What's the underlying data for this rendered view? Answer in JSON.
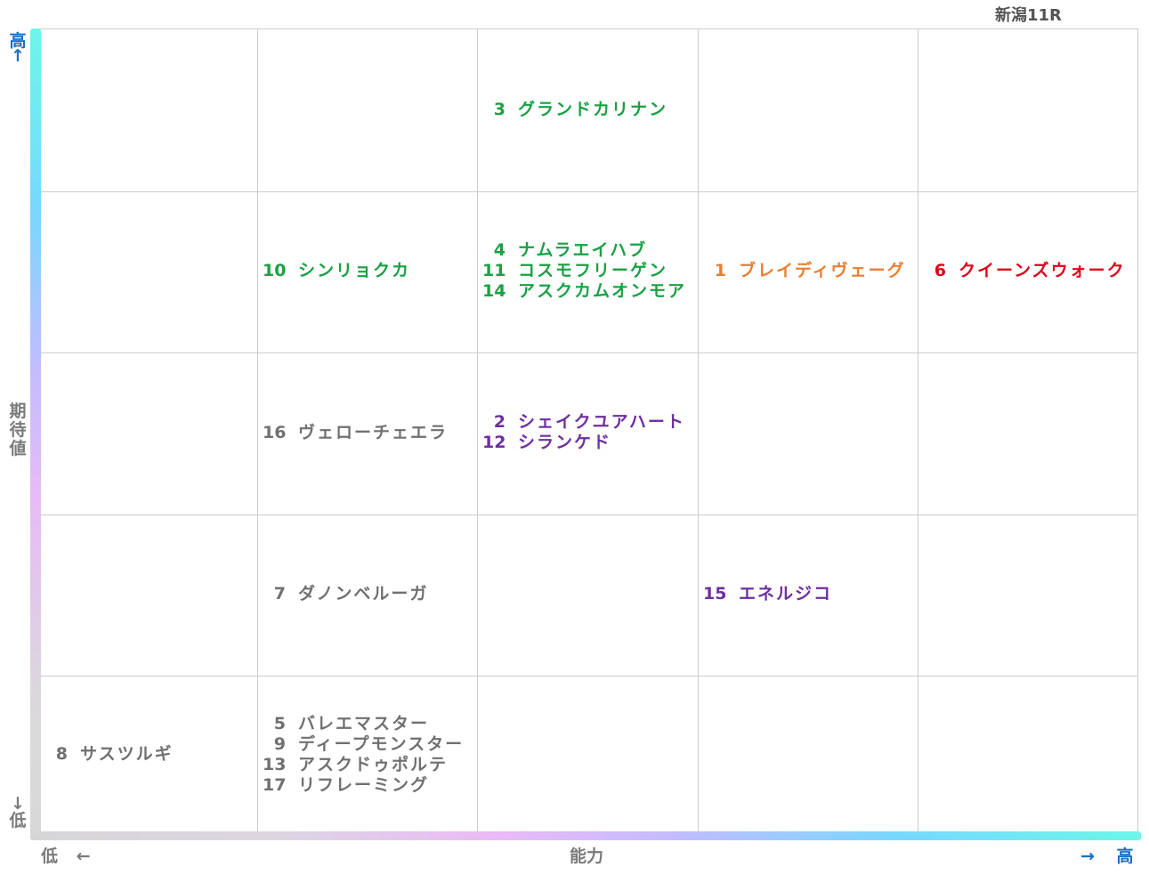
{
  "race_title": "新潟11R",
  "colors": {
    "green": "#1aa145",
    "orange": "#e87e32",
    "red": "#e0001b",
    "purple": "#6e2fa0",
    "gray": "#707070",
    "axis_blue": "#1b6fc4"
  },
  "axes": {
    "y_title": "期待値",
    "y_high": "高",
    "y_high_arrow": "↑",
    "y_low": "低",
    "y_low_arrow": "↓",
    "x_title": "能力",
    "x_low": "低",
    "x_low_arrow": "←",
    "x_high": "高",
    "x_high_arrow": "→"
  },
  "chart_data": {
    "type": "table",
    "x_axis": "能力",
    "y_axis": "期待値",
    "columns": 5,
    "rows": 5,
    "cells": [
      {
        "col": 3,
        "row": 1,
        "color": "green",
        "entries": [
          {
            "num": "3",
            "name": "グランドカリナン"
          }
        ]
      },
      {
        "col": 2,
        "row": 2,
        "color": "green",
        "entries": [
          {
            "num": "10",
            "name": "シンリョクカ"
          }
        ]
      },
      {
        "col": 3,
        "row": 2,
        "color": "green",
        "entries": [
          {
            "num": "4",
            "name": "ナムラエイハブ"
          },
          {
            "num": "11",
            "name": "コスモフリーゲン"
          },
          {
            "num": "14",
            "name": "アスクカムオンモア"
          }
        ]
      },
      {
        "col": 4,
        "row": 2,
        "color": "orange",
        "entries": [
          {
            "num": "1",
            "name": "ブレイディヴェーグ"
          }
        ]
      },
      {
        "col": 5,
        "row": 2,
        "color": "red",
        "entries": [
          {
            "num": "6",
            "name": "クイーンズウォーク"
          }
        ]
      },
      {
        "col": 2,
        "row": 3,
        "color": "gray",
        "entries": [
          {
            "num": "16",
            "name": "ヴェローチェエラ"
          }
        ]
      },
      {
        "col": 3,
        "row": 3,
        "color": "purple",
        "entries": [
          {
            "num": "2",
            "name": "シェイクユアハート"
          },
          {
            "num": "12",
            "name": "シランケド"
          }
        ]
      },
      {
        "col": 2,
        "row": 4,
        "color": "gray",
        "entries": [
          {
            "num": "7",
            "name": "ダノンベルーガ"
          }
        ]
      },
      {
        "col": 4,
        "row": 4,
        "color": "purple",
        "entries": [
          {
            "num": "15",
            "name": "エネルジコ"
          }
        ]
      },
      {
        "col": 1,
        "row": 5,
        "color": "gray",
        "entries": [
          {
            "num": "8",
            "name": "サスツルギ"
          }
        ]
      },
      {
        "col": 2,
        "row": 5,
        "color": "gray",
        "entries": [
          {
            "num": "5",
            "name": "バレエマスター"
          },
          {
            "num": "9",
            "name": "ディープモンスター"
          },
          {
            "num": "13",
            "name": "アスクドゥポルテ"
          },
          {
            "num": "17",
            "name": "リフレーミング"
          }
        ]
      }
    ]
  }
}
